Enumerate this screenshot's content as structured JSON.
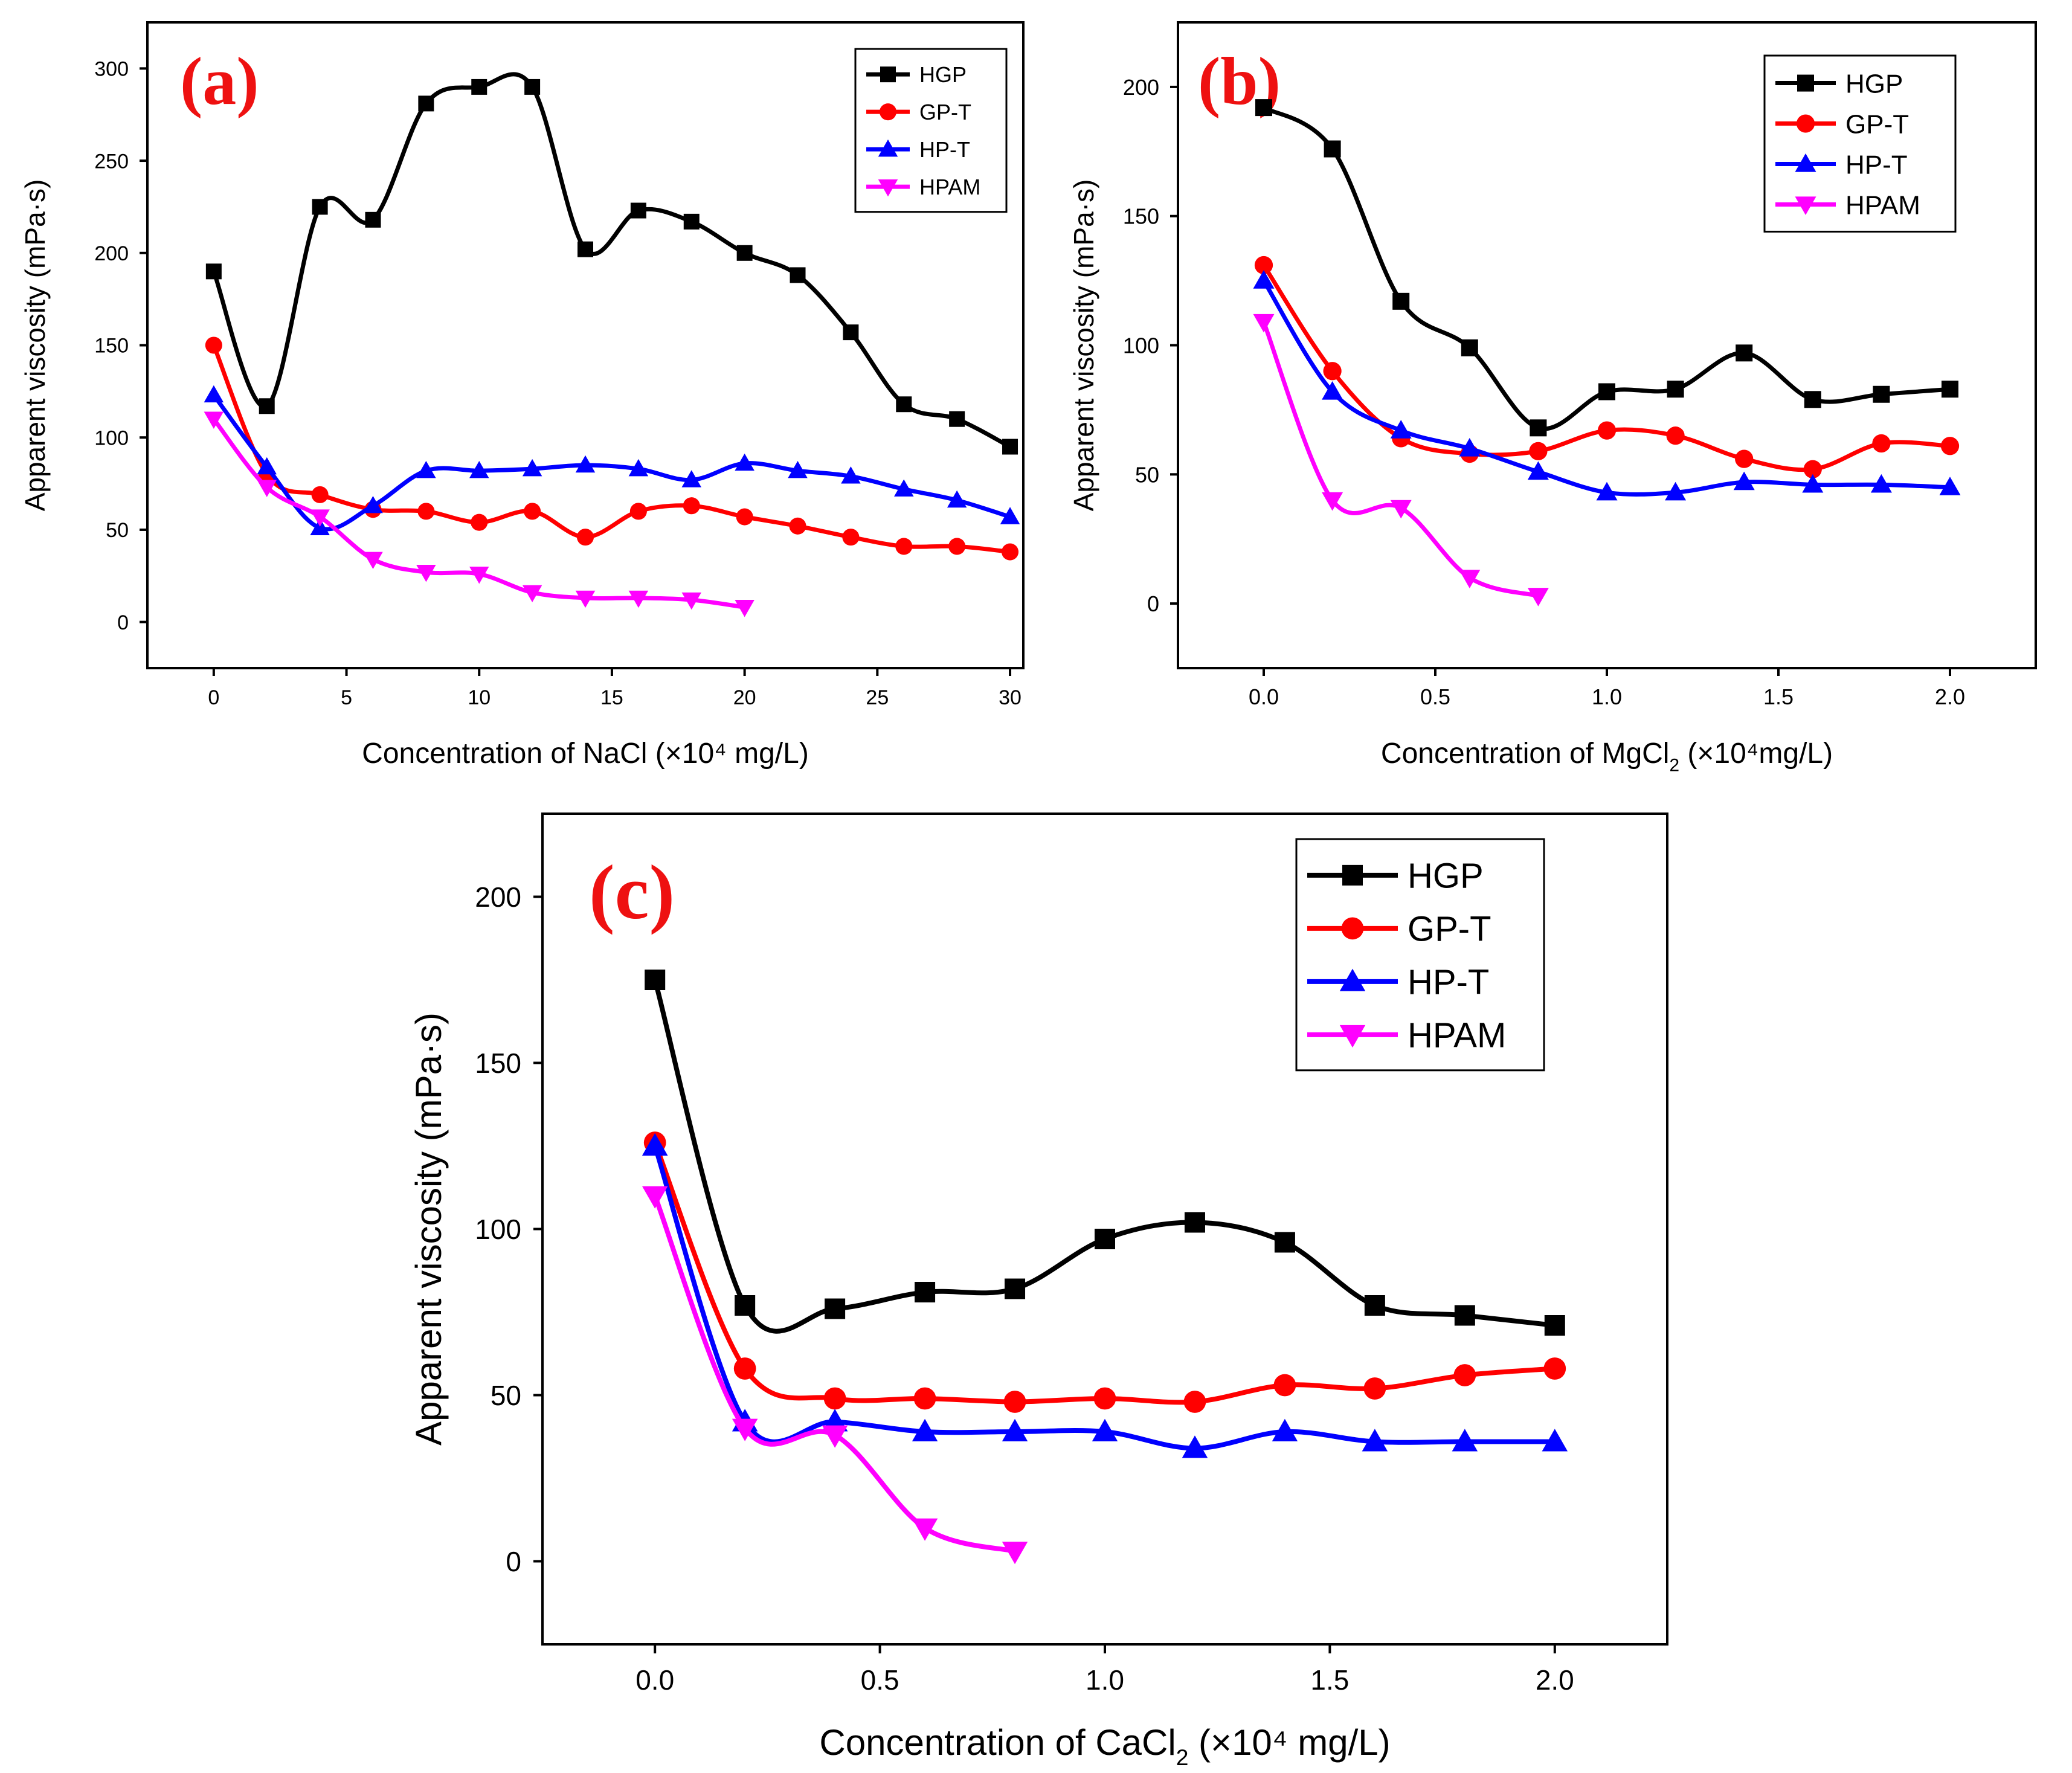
{
  "colors": {
    "HGP": "#000000",
    "GP-T": "#ff0000",
    "HP-T": "#0000ff",
    "HPAM": "#ff00ff",
    "label": "#ee1111"
  },
  "chart_data": [
    {
      "type": "line",
      "panel_label": "(a)",
      "xlabel": "Concentration of NaCl",
      "xlabel_unit": "(×10⁴ mg/L)",
      "ylabel": "Apparent viscosity (mPa·s)",
      "xlim": [
        -2.5,
        30.5
      ],
      "ylim": [
        -25,
        325
      ],
      "xticks": [
        0,
        5,
        10,
        15,
        20,
        25,
        30
      ],
      "xtick_labels": [
        "0",
        "5",
        "10",
        "15",
        "20",
        "25",
        "30"
      ],
      "yticks": [
        0,
        50,
        100,
        150,
        200,
        250,
        300
      ],
      "ytick_labels": [
        "0",
        "50",
        "100",
        "150",
        "200",
        "250",
        "300"
      ],
      "legend": [
        "HGP",
        "GP-T",
        "HP-T",
        "HPAM"
      ],
      "series": [
        {
          "name": "HGP",
          "marker": "square",
          "x": [
            0,
            2,
            4,
            6,
            8,
            10,
            12,
            14,
            16,
            18,
            20,
            22,
            24,
            26,
            28,
            30
          ],
          "y": [
            190,
            117,
            225,
            218,
            281,
            290,
            290,
            202,
            223,
            217,
            200,
            188,
            157,
            118,
            110,
            95
          ]
        },
        {
          "name": "GP-T",
          "marker": "circle",
          "x": [
            0,
            2,
            4,
            6,
            8,
            10,
            12,
            14,
            16,
            18,
            20,
            22,
            24,
            26,
            28,
            30
          ],
          "y": [
            150,
            80,
            69,
            61,
            60,
            54,
            60,
            46,
            60,
            63,
            57,
            52,
            46,
            41,
            41,
            38
          ]
        },
        {
          "name": "HP-T",
          "marker": "triangle-up",
          "x": [
            0,
            2,
            4,
            6,
            8,
            10,
            12,
            14,
            16,
            18,
            20,
            22,
            24,
            26,
            28,
            30
          ],
          "y": [
            123,
            84,
            51,
            63,
            82,
            82,
            83,
            85,
            83,
            77,
            86,
            82,
            79,
            72,
            66,
            57
          ]
        },
        {
          "name": "HPAM",
          "marker": "triangle-down",
          "x": [
            0,
            2,
            4,
            6,
            8,
            10,
            12,
            14,
            16,
            18,
            20
          ],
          "y": [
            110,
            73,
            57,
            34,
            27,
            26,
            16,
            13,
            13,
            12,
            8
          ]
        }
      ]
    },
    {
      "type": "line",
      "panel_label": "(b)",
      "xlabel": "Concentration of MgCl",
      "xlabel_sub": "2",
      "xlabel_unit": "(×10⁴mg/L)",
      "ylabel": "Apparent viscosity (mPa·s)",
      "xlim": [
        -0.25,
        2.25
      ],
      "ylim": [
        -25,
        225
      ],
      "xticks": [
        0,
        0.5,
        1,
        1.5,
        2
      ],
      "xtick_labels": [
        "0.0",
        "0.5",
        "1.0",
        "1.5",
        "2.0"
      ],
      "yticks": [
        0,
        50,
        100,
        150,
        200
      ],
      "ytick_labels": [
        "0",
        "50",
        "100",
        "150",
        "200"
      ],
      "legend": [
        "HGP",
        "GP-T",
        "HP-T",
        "HPAM"
      ],
      "series": [
        {
          "name": "HGP",
          "marker": "square",
          "x": [
            0,
            0.2,
            0.4,
            0.6,
            0.8,
            1.0,
            1.2,
            1.4,
            1.6,
            1.8,
            2.0
          ],
          "y": [
            192,
            176,
            117,
            99,
            68,
            82,
            83,
            97,
            79,
            81,
            83
          ]
        },
        {
          "name": "GP-T",
          "marker": "circle",
          "x": [
            0,
            0.2,
            0.4,
            0.6,
            0.8,
            1.0,
            1.2,
            1.4,
            1.6,
            1.8,
            2.0
          ],
          "y": [
            131,
            90,
            64,
            58,
            59,
            67,
            65,
            56,
            52,
            62,
            61
          ]
        },
        {
          "name": "HP-T",
          "marker": "triangle-up",
          "x": [
            0,
            0.2,
            0.4,
            0.6,
            0.8,
            1.0,
            1.2,
            1.4,
            1.6,
            1.8,
            2.0
          ],
          "y": [
            125,
            82,
            67,
            60,
            51,
            43,
            43,
            47,
            46,
            46,
            45
          ]
        },
        {
          "name": "HPAM",
          "marker": "triangle-down",
          "x": [
            0,
            0.2,
            0.4,
            0.6,
            0.8
          ],
          "y": [
            109,
            40,
            37,
            10,
            3
          ]
        }
      ]
    },
    {
      "type": "line",
      "panel_label": "(c)",
      "xlabel": "Concentration of CaCl",
      "xlabel_sub": "2",
      "xlabel_unit": "(×10⁴ mg/L)",
      "ylabel": "Apparent viscosity (mPa·s)",
      "xlim": [
        -0.25,
        2.25
      ],
      "ylim": [
        -25,
        225
      ],
      "xticks": [
        0,
        0.5,
        1,
        1.5,
        2
      ],
      "xtick_labels": [
        "0.0",
        "0.5",
        "1.0",
        "1.5",
        "2.0"
      ],
      "yticks": [
        0,
        50,
        100,
        150,
        200
      ],
      "ytick_labels": [
        "0",
        "50",
        "100",
        "150",
        "200"
      ],
      "legend": [
        "HGP",
        "GP-T",
        "HP-T",
        "HPAM"
      ],
      "series": [
        {
          "name": "HGP",
          "marker": "square",
          "x": [
            0,
            0.2,
            0.4,
            0.6,
            0.8,
            1.0,
            1.2,
            1.4,
            1.6,
            1.8,
            2.0
          ],
          "y": [
            175,
            77,
            76,
            81,
            82,
            97,
            102,
            96,
            77,
            74,
            71
          ]
        },
        {
          "name": "GP-T",
          "marker": "circle",
          "x": [
            0,
            0.2,
            0.4,
            0.6,
            0.8,
            1.0,
            1.2,
            1.4,
            1.6,
            1.8,
            2.0
          ],
          "y": [
            126,
            58,
            49,
            49,
            48,
            49,
            48,
            53,
            52,
            56,
            58
          ]
        },
        {
          "name": "HP-T",
          "marker": "triangle-up",
          "x": [
            0,
            0.2,
            0.4,
            0.6,
            0.8,
            1.0,
            1.2,
            1.4,
            1.6,
            1.8,
            2.0
          ],
          "y": [
            125,
            42,
            42,
            39,
            39,
            39,
            34,
            39,
            36,
            36,
            36
          ]
        },
        {
          "name": "HPAM",
          "marker": "triangle-down",
          "x": [
            0,
            0.2,
            0.4,
            0.6,
            0.8
          ],
          "y": [
            110,
            40,
            38,
            10,
            3
          ]
        }
      ]
    }
  ]
}
